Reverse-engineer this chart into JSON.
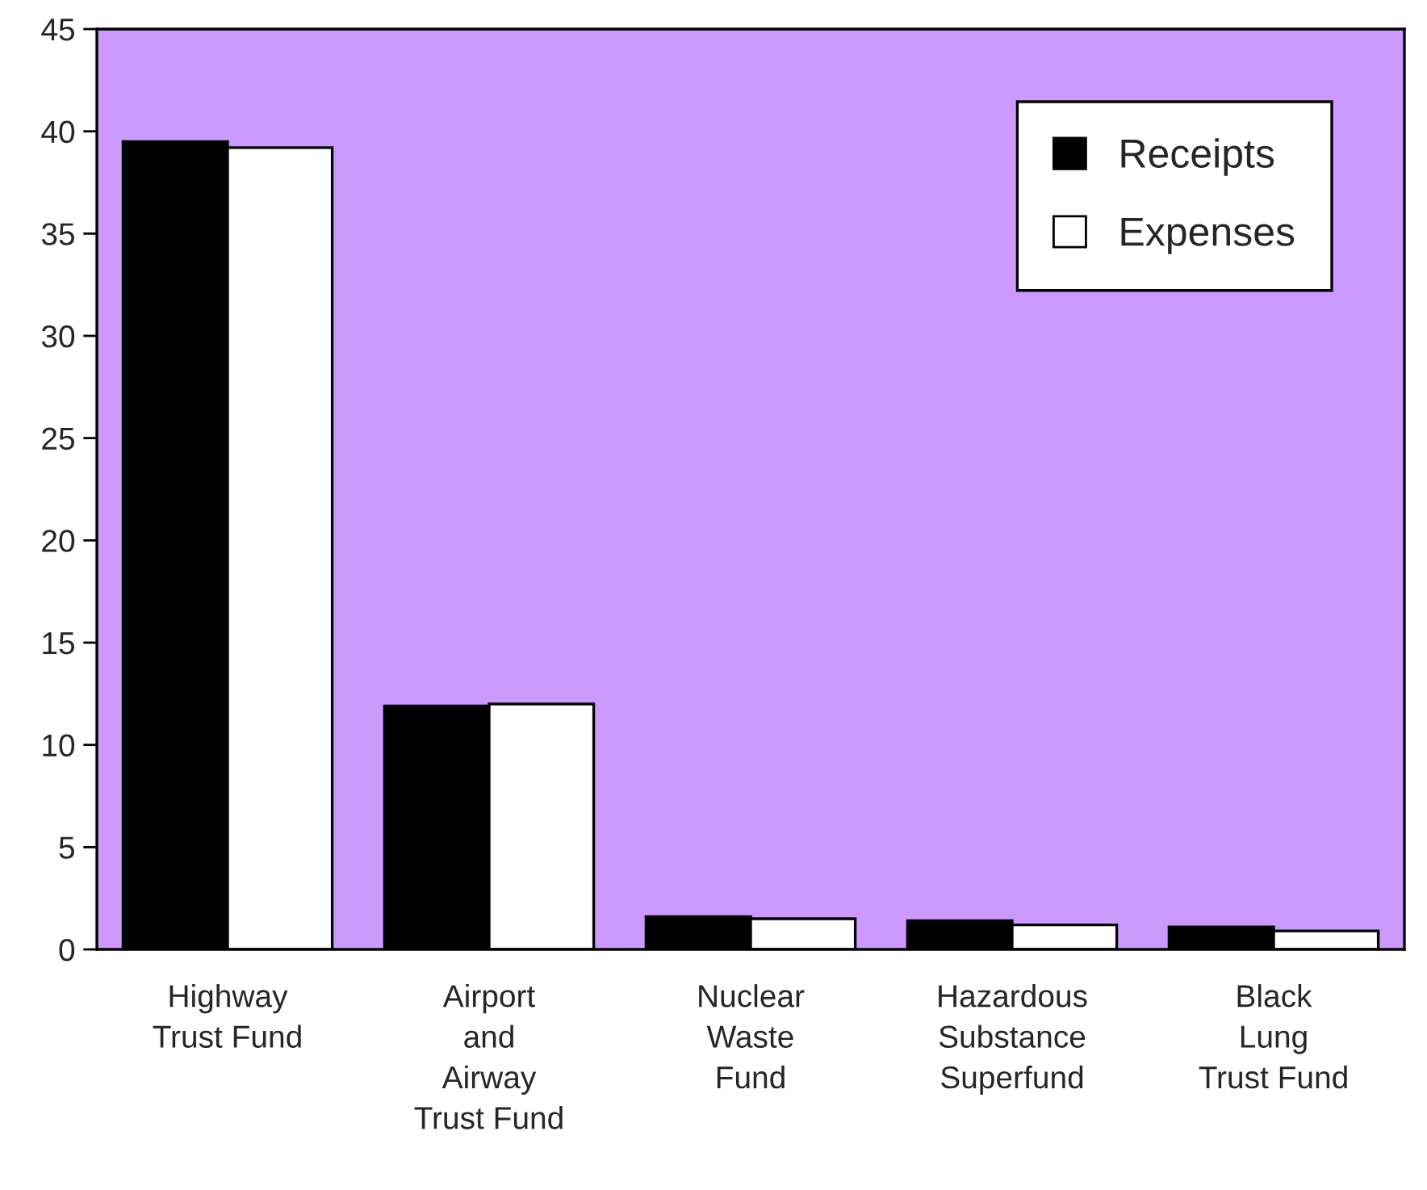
{
  "chart_data": {
    "type": "bar",
    "categories": [
      "Highway\nTrust Fund",
      "Airport\nand\nAirway\nTrust Fund",
      "Nuclear\nWaste\nFund",
      "Hazardous\nSubstance\nSuperfund",
      "Black\nLung\nTrust Fund"
    ],
    "series": [
      {
        "name": "Receipts",
        "color": "#000000",
        "values": [
          39.5,
          11.9,
          1.6,
          1.4,
          1.1
        ]
      },
      {
        "name": "Expenses",
        "color": "#ffffff",
        "values": [
          39.2,
          12.0,
          1.5,
          1.2,
          0.9
        ]
      }
    ],
    "ylim": [
      0,
      45
    ],
    "yticks": [
      0,
      5,
      10,
      15,
      20,
      25,
      30,
      35,
      40,
      45
    ],
    "grid": false,
    "legend": "top right"
  }
}
